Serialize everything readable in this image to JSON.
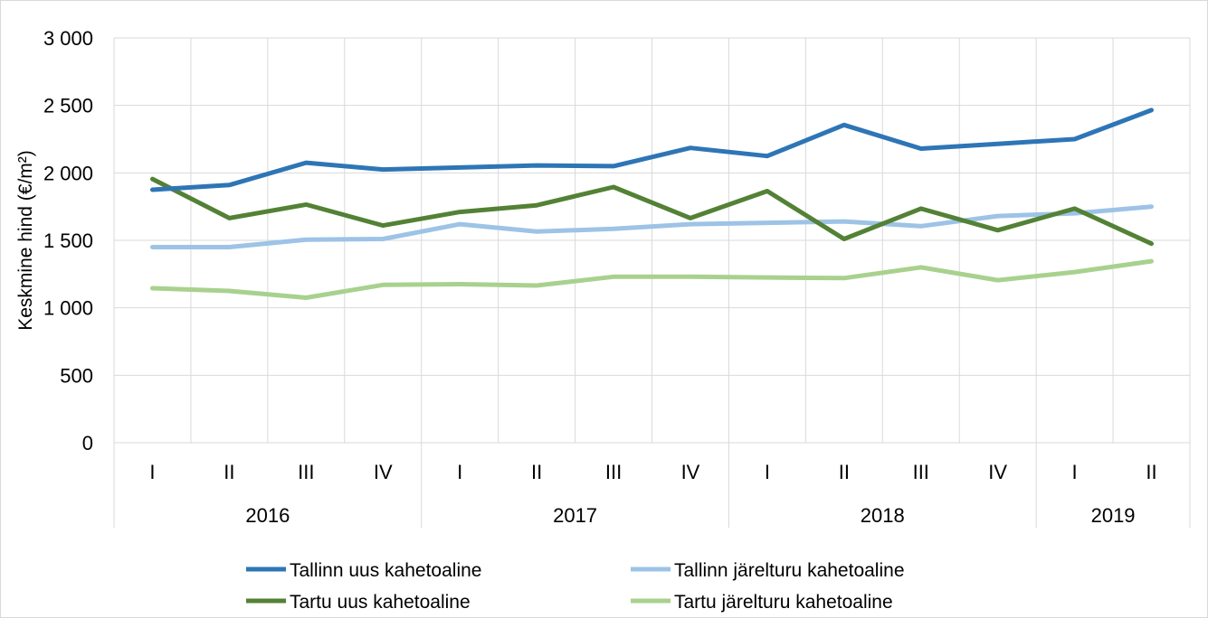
{
  "chart_data": {
    "type": "line",
    "ylabel": "Keskmine hind (€/m²)",
    "ylim": [
      0,
      3000
    ],
    "yticks": [
      0,
      500,
      1000,
      1500,
      2000,
      2500,
      3000
    ],
    "ytick_labels": [
      "0",
      "500",
      "1 000",
      "1 500",
      "2 000",
      "2 500",
      "3 000"
    ],
    "grid": true,
    "legend_position": "bottom",
    "x": [
      "I",
      "II",
      "III",
      "IV",
      "I",
      "II",
      "III",
      "IV",
      "I",
      "II",
      "III",
      "IV",
      "I",
      "II"
    ],
    "groups": [
      {
        "label": "2016",
        "count": 4
      },
      {
        "label": "2017",
        "count": 4
      },
      {
        "label": "2018",
        "count": 4
      },
      {
        "label": "2019",
        "count": 2
      }
    ],
    "series": [
      {
        "name": "Tallinn uus kahetoaline",
        "color": "#2e75b6",
        "values": [
          1875,
          1910,
          2075,
          2025,
          2040,
          2055,
          2050,
          2185,
          2125,
          2355,
          2180,
          2215,
          2250,
          2465
        ]
      },
      {
        "name": "Tallinn järelturu kahetoaline",
        "color": "#9dc3e6",
        "values": [
          1450,
          1450,
          1505,
          1510,
          1620,
          1565,
          1585,
          1620,
          1630,
          1640,
          1605,
          1680,
          1700,
          1750
        ]
      },
      {
        "name": "Tartu uus kahetoaline",
        "color": "#538135",
        "values": [
          1955,
          1665,
          1765,
          1610,
          1710,
          1760,
          1895,
          1665,
          1865,
          1510,
          1735,
          1575,
          1735,
          1475
        ]
      },
      {
        "name": "Tartu järelturu kahetoaline",
        "color": "#a9d18e",
        "values": [
          1145,
          1125,
          1075,
          1170,
          1175,
          1165,
          1230,
          1230,
          1225,
          1220,
          1300,
          1205,
          1265,
          1345
        ]
      }
    ]
  }
}
